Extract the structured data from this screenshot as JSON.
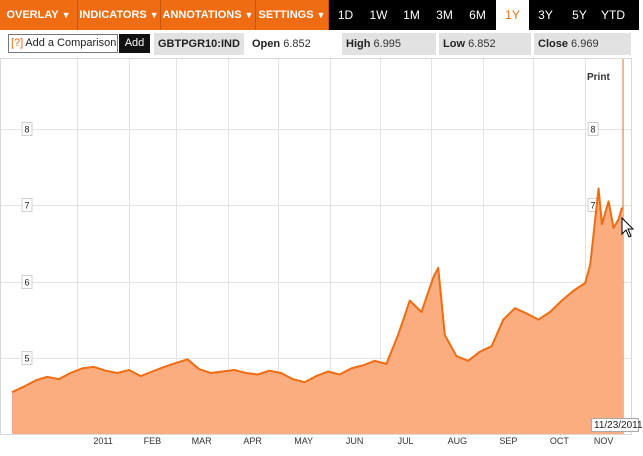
{
  "toolbar": {
    "menus": [
      {
        "label": "OVERLAY"
      },
      {
        "label": "INDICATORS"
      },
      {
        "label": "ANNOTATIONS"
      },
      {
        "label": "SETTINGS"
      }
    ],
    "ranges": [
      "1D",
      "1W",
      "1M",
      "3M",
      "6M",
      "1Y",
      "3Y",
      "5Y",
      "YTD"
    ],
    "active_range": "1Y",
    "menu_color": "#ef6c12"
  },
  "info": {
    "comparison_help": "[?]",
    "comparison_label": "Add a Comparison",
    "add_label": "Add",
    "ticker": "GBTPGR10:IND",
    "open_label": "Open",
    "open_value": "6.852",
    "high_label": "High",
    "high_value": "6.995",
    "low_label": "Low",
    "low_value": "6.852",
    "close_label": "Close",
    "close_value": "6.969"
  },
  "print_label": "Print",
  "hover_date": "11/23/2011",
  "chart_data": {
    "type": "area",
    "fill_color": "#fcad7f",
    "line_color": "#ef6c12",
    "x_tick_labels": [
      "2011",
      "FEB",
      "MAR",
      "APR",
      "MAY",
      "JUN",
      "JUL",
      "AUG",
      "SEP",
      "OCT",
      "NOV"
    ],
    "y_tick_labels": [
      "5",
      "6",
      "7",
      "8"
    ],
    "ylim": [
      4.0,
      8.8
    ],
    "grid": true,
    "series": [
      {
        "x": [
          "2010-11-23",
          "2010-11-30",
          "2010-12-07",
          "2010-12-14",
          "2010-12-21",
          "2010-12-28",
          "2011-01-04",
          "2011-01-11",
          "2011-01-18",
          "2011-01-25",
          "2011-02-01",
          "2011-02-08",
          "2011-02-15",
          "2011-02-22",
          "2011-03-01",
          "2011-03-08",
          "2011-03-15",
          "2011-03-22",
          "2011-03-29",
          "2011-04-05",
          "2011-04-12",
          "2011-04-19",
          "2011-04-26",
          "2011-05-03",
          "2011-05-10",
          "2011-05-17",
          "2011-05-24",
          "2011-05-31",
          "2011-06-07",
          "2011-06-14",
          "2011-06-21",
          "2011-06-28",
          "2011-07-05",
          "2011-07-12",
          "2011-07-19",
          "2011-07-26",
          "2011-08-02",
          "2011-08-05",
          "2011-08-09",
          "2011-08-16",
          "2011-08-23",
          "2011-08-30",
          "2011-09-06",
          "2011-09-13",
          "2011-09-20",
          "2011-09-27",
          "2011-10-04",
          "2011-10-11",
          "2011-10-18",
          "2011-10-25",
          "2011-11-01",
          "2011-11-04",
          "2011-11-09",
          "2011-11-11",
          "2011-11-15",
          "2011-11-18",
          "2011-11-21",
          "2011-11-23"
        ],
        "values": [
          4.55,
          4.62,
          4.7,
          4.75,
          4.72,
          4.8,
          4.86,
          4.88,
          4.83,
          4.8,
          4.84,
          4.76,
          4.82,
          4.88,
          4.93,
          4.98,
          4.85,
          4.8,
          4.82,
          4.84,
          4.8,
          4.78,
          4.83,
          4.8,
          4.72,
          4.68,
          4.76,
          4.82,
          4.78,
          4.86,
          4.9,
          4.96,
          4.92,
          5.3,
          5.75,
          5.6,
          6.05,
          6.18,
          5.3,
          5.02,
          4.96,
          5.08,
          5.15,
          5.5,
          5.65,
          5.58,
          5.5,
          5.6,
          5.75,
          5.88,
          5.98,
          6.22,
          7.22,
          6.75,
          7.05,
          6.7,
          6.82,
          6.97
        ]
      }
    ]
  }
}
